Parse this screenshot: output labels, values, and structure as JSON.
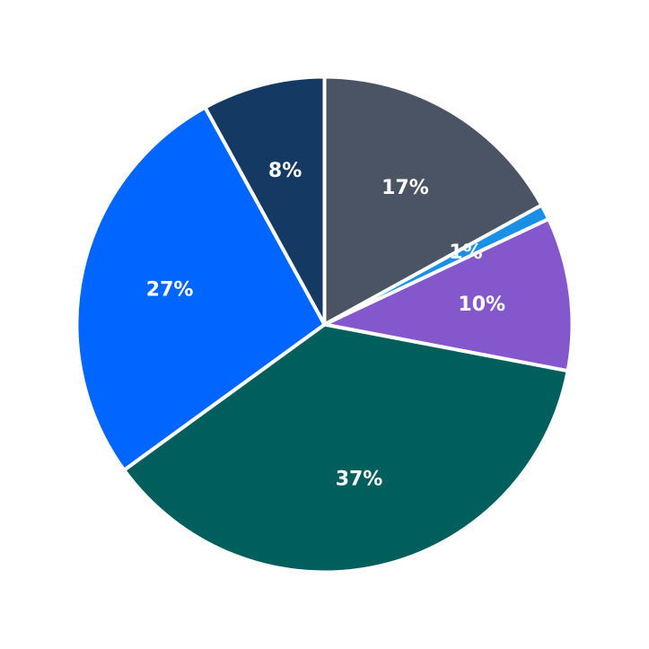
{
  "chart_data": {
    "type": "pie",
    "start_angle": "12 o'clock",
    "direction": "clockwise",
    "slices": [
      {
        "value": 17,
        "label": "17%",
        "color": "#4a5464"
      },
      {
        "value": 1,
        "label": "1%",
        "color": "#1a8fe6"
      },
      {
        "value": 10,
        "label": "10%",
        "color": "#8457cc"
      },
      {
        "value": 37,
        "label": "37%",
        "color": "#005e5c"
      },
      {
        "value": 27,
        "label": "27%",
        "color": "#0066ff"
      },
      {
        "value": 8,
        "label": "8%",
        "color": "#143963"
      }
    ]
  }
}
